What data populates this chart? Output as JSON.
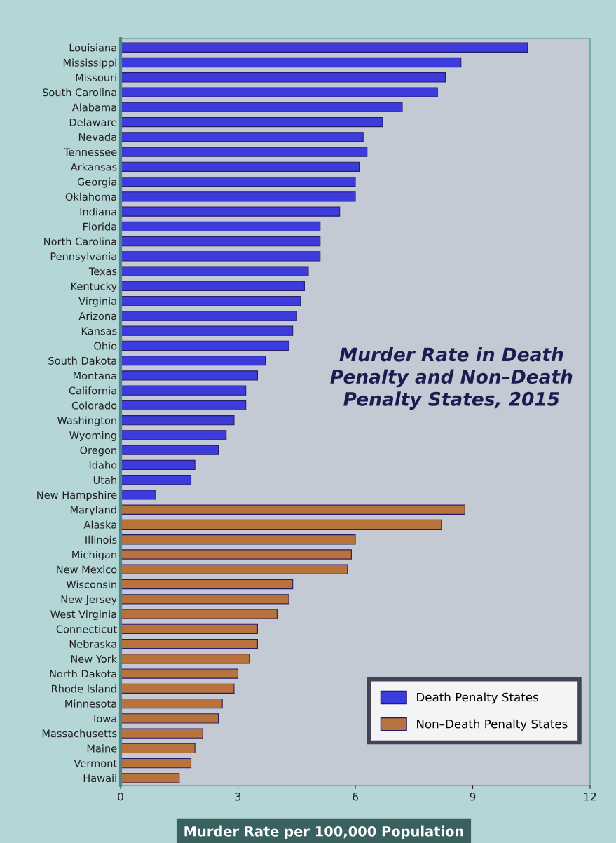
{
  "chart_data": {
    "type": "bar",
    "orientation": "horizontal",
    "title": "Murder Rate in Death\nPenalty and Non–Death\nPenalty States, 2015",
    "xlabel": "Murder Rate per 100,000 Population",
    "categories": [
      "Louisiana",
      "Mississippi",
      "Missouri",
      "South Carolina",
      "Alabama",
      "Delaware",
      "Nevada",
      "Tennessee",
      "Arkansas",
      "Georgia",
      "Oklahoma",
      "Indiana",
      "Florida",
      "North Carolina",
      "Pennsylvania",
      "Texas",
      "Kentucky",
      "Virginia",
      "Arizona",
      "Kansas",
      "Ohio",
      "South Dakota",
      "Montana",
      "California",
      "Colorado",
      "Washington",
      "Wyoming",
      "Oregon",
      "Idaho",
      "Utah",
      "New Hampshire",
      "Maryland",
      "Alaska",
      "Illinois",
      "Michigan",
      "New Mexico",
      "Wisconsin",
      "New Jersey",
      "West Virginia",
      "Connecticut",
      "Nebraska",
      "New York",
      "North Dakota",
      "Rhode Island",
      "Minnesota",
      "Iowa",
      "Massachusetts",
      "Maine",
      "Vermont",
      "Hawaii"
    ],
    "series": [
      {
        "name": "Death Penalty States",
        "color": "#3c3cdc",
        "values": [
          10.4,
          8.7,
          8.3,
          8.1,
          7.2,
          6.7,
          6.2,
          6.3,
          6.1,
          6.0,
          6.0,
          5.6,
          5.1,
          5.1,
          5.1,
          4.8,
          4.7,
          4.6,
          4.5,
          4.4,
          4.3,
          3.7,
          3.5,
          3.2,
          3.2,
          2.9,
          2.7,
          2.5,
          1.9,
          1.8,
          0.9,
          null,
          null,
          null,
          null,
          null,
          null,
          null,
          null,
          null,
          null,
          null,
          null,
          null,
          null,
          null,
          null,
          null,
          null,
          null
        ]
      },
      {
        "name": "Non–Death Penalty States",
        "color": "#b8733c",
        "values": [
          null,
          null,
          null,
          null,
          null,
          null,
          null,
          null,
          null,
          null,
          null,
          null,
          null,
          null,
          null,
          null,
          null,
          null,
          null,
          null,
          null,
          null,
          null,
          null,
          null,
          null,
          null,
          null,
          null,
          null,
          null,
          8.8,
          8.2,
          6.0,
          5.9,
          5.8,
          4.4,
          4.3,
          4.0,
          3.5,
          3.5,
          3.3,
          3.0,
          2.9,
          2.6,
          2.5,
          2.1,
          1.9,
          1.8,
          1.5
        ]
      }
    ],
    "xlim": [
      0,
      12
    ],
    "xticks": [
      0,
      3,
      6,
      9,
      12
    ],
    "grid": false,
    "legend": "bottom right"
  }
}
